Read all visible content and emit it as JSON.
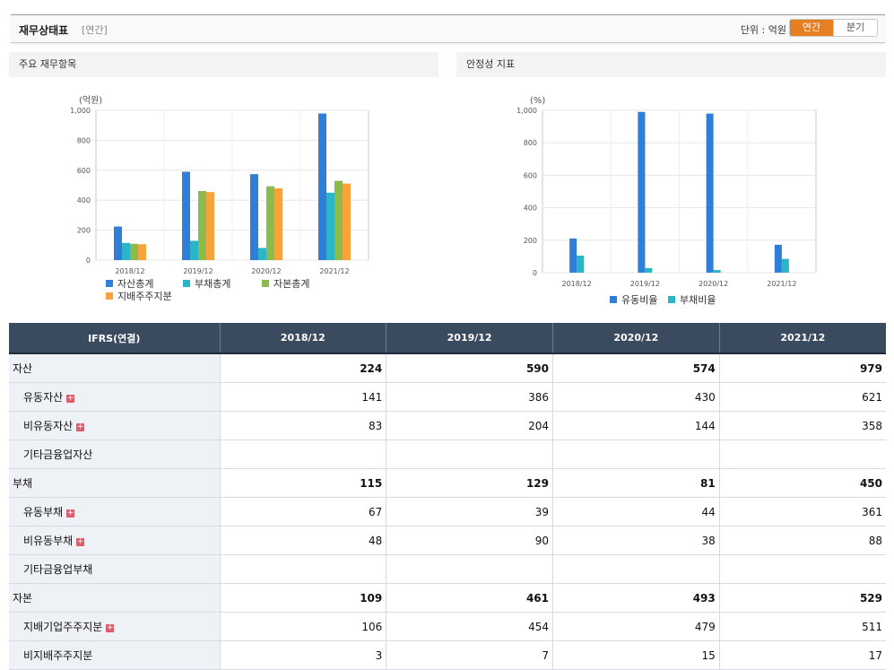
{
  "header": {
    "title": "재무상태표",
    "period": "[연간]",
    "unit_label": "단위 : 억원",
    "toggle_annual": "연간",
    "toggle_quarter": "분기"
  },
  "panels": {
    "left_title": "주요 재무항목",
    "right_title": "안정성 지표"
  },
  "colors": {
    "blue": "#2f7ed8",
    "teal": "#2bb5c8",
    "green": "#8bbb4b",
    "orange": "#f7a23b",
    "accent": "#e67e22",
    "table_header": "#3a4a5f"
  },
  "chart_data": [
    {
      "type": "bar",
      "unit": "(억원)",
      "categories": [
        "2018/12",
        "2019/12",
        "2020/12",
        "2021/12"
      ],
      "ylim": [
        0,
        1000
      ],
      "yticks": [
        0,
        200,
        400,
        600,
        800,
        1000
      ],
      "ytick_labels": [
        "0",
        "200",
        "400",
        "600",
        "800",
        "1,000"
      ],
      "grid": true,
      "series": [
        {
          "name": "자산총계",
          "color": "#2f7ed8",
          "values": [
            224,
            590,
            574,
            979
          ]
        },
        {
          "name": "부채총계",
          "color": "#2bb5c8",
          "values": [
            115,
            129,
            81,
            450
          ]
        },
        {
          "name": "자본총계",
          "color": "#8bbb4b",
          "values": [
            109,
            461,
            493,
            529
          ]
        },
        {
          "name": "지배주주지분",
          "color": "#f7a23b",
          "values": [
            106,
            454,
            479,
            511
          ]
        }
      ]
    },
    {
      "type": "bar",
      "unit": "(%)",
      "categories": [
        "2018/12",
        "2019/12",
        "2020/12",
        "2021/12"
      ],
      "ylim": [
        0,
        1000
      ],
      "yticks": [
        0,
        200,
        400,
        600,
        800,
        1000
      ],
      "ytick_labels": [
        "0",
        "200",
        "400",
        "600",
        "800",
        "1,000"
      ],
      "grid": true,
      "series": [
        {
          "name": "유동비율",
          "color": "#2f7ed8",
          "values": [
            210,
            990,
            980,
            172
          ]
        },
        {
          "name": "부채비율",
          "color": "#2bb5c8",
          "values": [
            105,
            28,
            16,
            85
          ]
        }
      ]
    }
  ],
  "table": {
    "header": [
      "IFRS(연결)",
      "2018/12",
      "2019/12",
      "2020/12",
      "2021/12"
    ],
    "rows": [
      {
        "label": "자산",
        "bold": true,
        "indent": false,
        "plus": false,
        "values": [
          "224",
          "590",
          "574",
          "979"
        ]
      },
      {
        "label": "유동자산",
        "bold": false,
        "indent": true,
        "plus": true,
        "values": [
          "141",
          "386",
          "430",
          "621"
        ]
      },
      {
        "label": "비유동자산",
        "bold": false,
        "indent": true,
        "plus": true,
        "values": [
          "83",
          "204",
          "144",
          "358"
        ]
      },
      {
        "label": "기타금융업자산",
        "bold": false,
        "indent": true,
        "plus": false,
        "values": [
          "",
          "",
          "",
          ""
        ]
      },
      {
        "label": "부채",
        "bold": true,
        "indent": false,
        "plus": false,
        "values": [
          "115",
          "129",
          "81",
          "450"
        ]
      },
      {
        "label": "유동부채",
        "bold": false,
        "indent": true,
        "plus": true,
        "values": [
          "67",
          "39",
          "44",
          "361"
        ]
      },
      {
        "label": "비유동부채",
        "bold": false,
        "indent": true,
        "plus": true,
        "values": [
          "48",
          "90",
          "38",
          "88"
        ]
      },
      {
        "label": "기타금융업부채",
        "bold": false,
        "indent": true,
        "plus": false,
        "values": [
          "",
          "",
          "",
          ""
        ]
      },
      {
        "label": "자본",
        "bold": true,
        "indent": false,
        "plus": false,
        "values": [
          "109",
          "461",
          "493",
          "529"
        ]
      },
      {
        "label": "지배기업주주지분",
        "bold": false,
        "indent": true,
        "plus": true,
        "values": [
          "106",
          "454",
          "479",
          "511"
        ]
      },
      {
        "label": "비지배주주지분",
        "bold": false,
        "indent": true,
        "plus": false,
        "values": [
          "3",
          "7",
          "15",
          "17"
        ]
      }
    ]
  }
}
